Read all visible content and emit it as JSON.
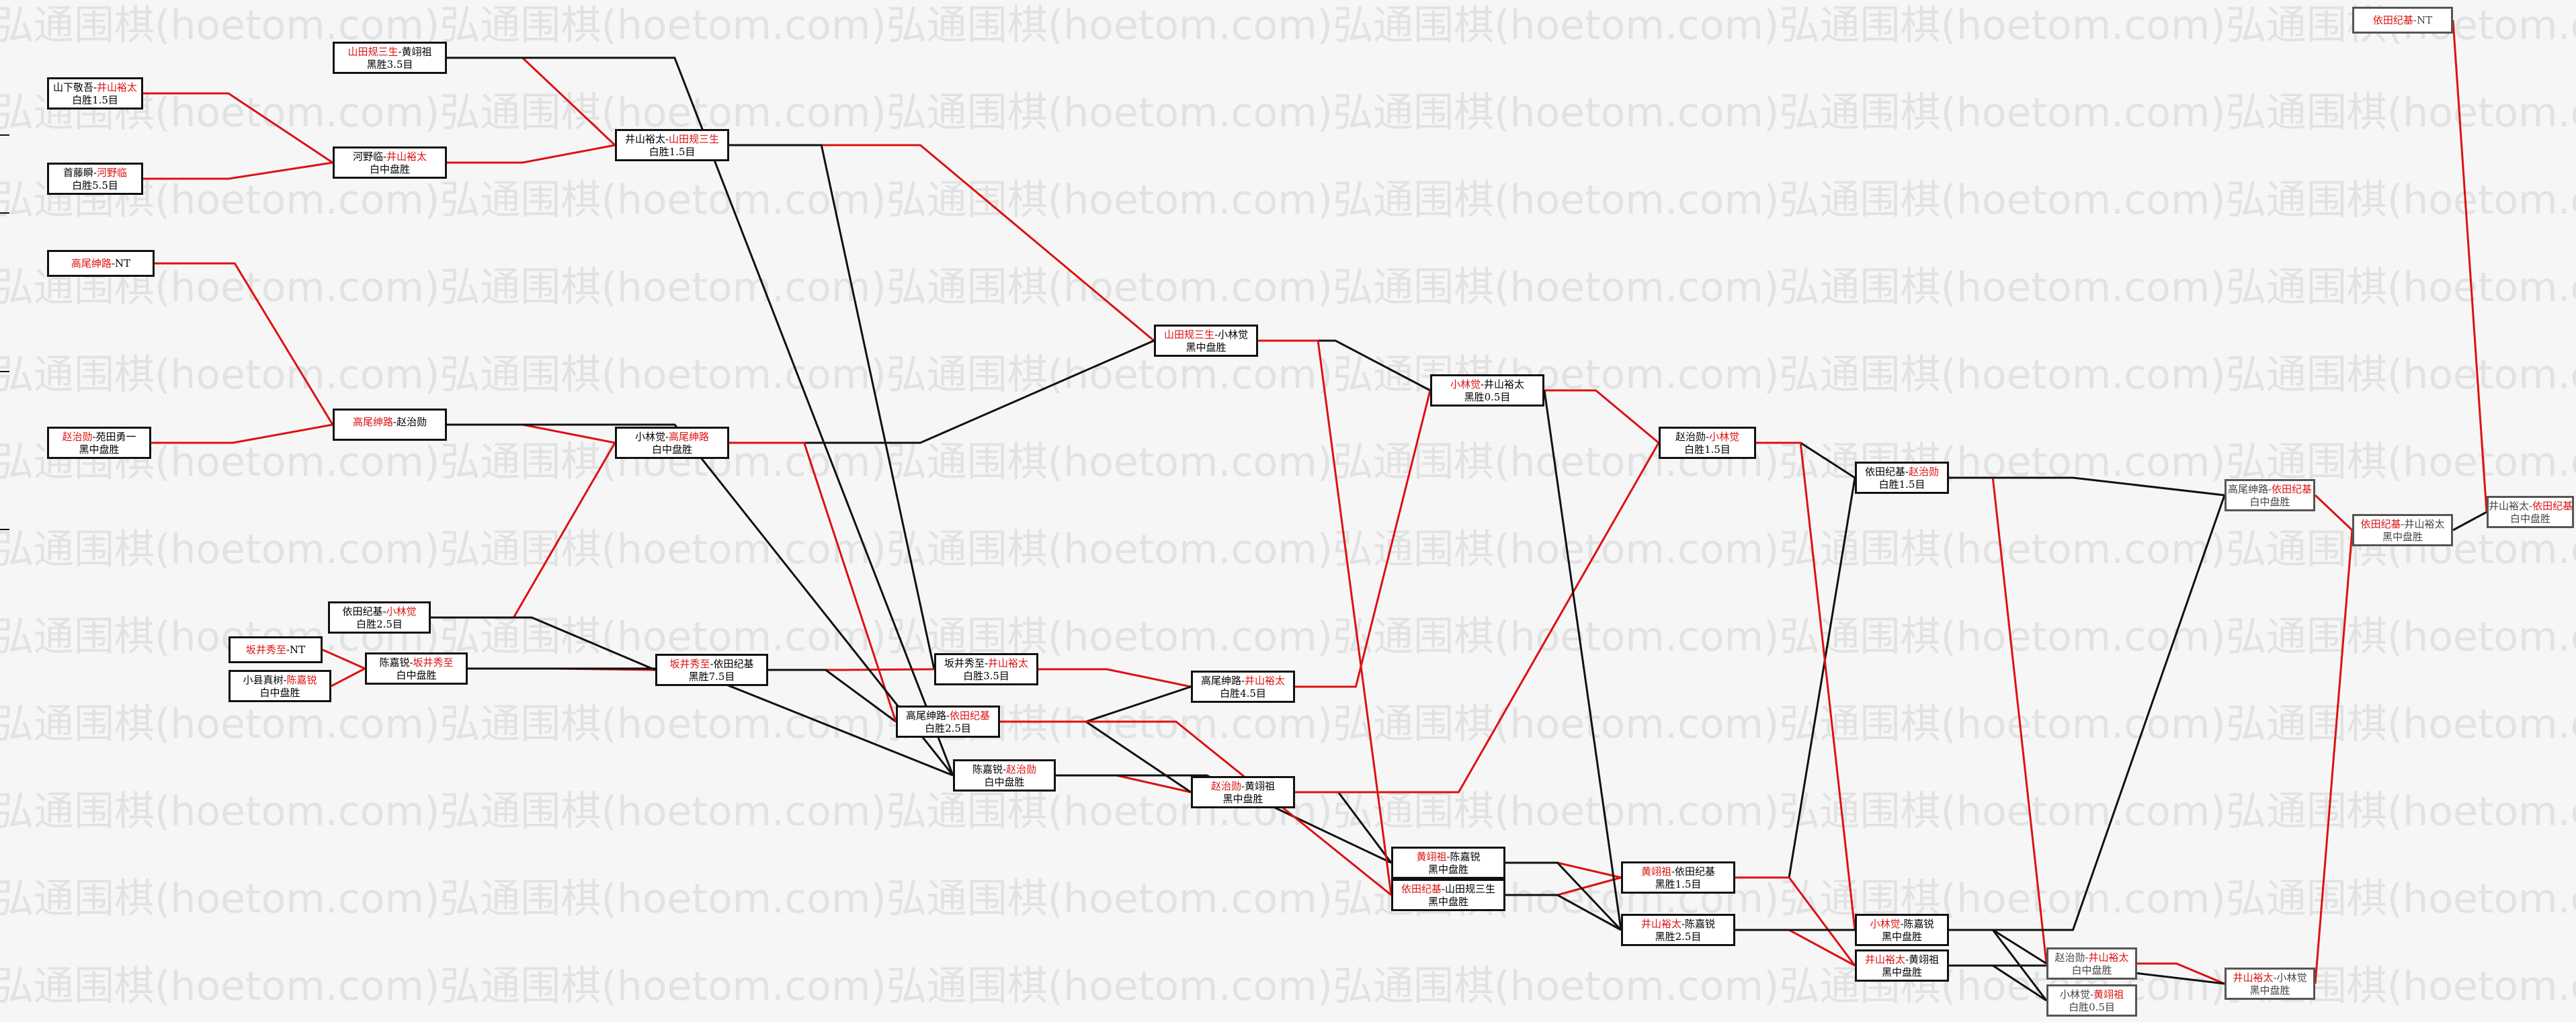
{
  "watermark": "弘通围棋(hoetom.com)",
  "colors": {
    "winner": "#dd1111",
    "line_win": "#dd1111",
    "line_loss": "#111111",
    "background": "#f6f6f6"
  },
  "games": {
    "g1": {
      "black": "山下敬吾",
      "white": "井山裕太",
      "winner": "white",
      "result": "白胜1.5目"
    },
    "g2": {
      "black": "首藤瞬",
      "white": "河野临",
      "winner": "white",
      "result": "白胜5.5目"
    },
    "g3": {
      "black": "高尾绅路",
      "white": "NT",
      "winner": "black",
      "result": ""
    },
    "g4": {
      "black": "赵治勋",
      "white": "苑田勇一",
      "winner": "black",
      "result": "黑中盘胜"
    },
    "g5": {
      "black": "山田规三生",
      "white": "黄翊祖",
      "winner": "black",
      "result": "黑胜3.5目"
    },
    "g6": {
      "black": "河野临",
      "white": "井山裕太",
      "winner": "white",
      "result": "白中盘胜"
    },
    "g7": {
      "black": "高尾绅路",
      "white": "赵治勋",
      "winner": "black",
      "result": ""
    },
    "g8": {
      "black": "依田纪基",
      "white": "小林觉",
      "winner": "white",
      "result": "白胜2.5目"
    },
    "g9": {
      "black": "坂井秀至",
      "white": "NT",
      "winner": "black",
      "result": ""
    },
    "g10": {
      "black": "小县真树",
      "white": "陈嘉锐",
      "winner": "white",
      "result": "白中盘胜"
    },
    "g11": {
      "black": "陈嘉锐",
      "white": "坂井秀至",
      "winner": "white",
      "result": "白中盘胜"
    },
    "g12": {
      "black": "井山裕太",
      "white": "山田规三生",
      "winner": "white",
      "result": "白胜1.5目"
    },
    "g13": {
      "black": "小林觉",
      "white": "高尾绅路",
      "winner": "white",
      "result": "白中盘胜"
    },
    "g14": {
      "black": "坂井秀至",
      "white": "依田纪基",
      "winner": "black",
      "result": "黑胜7.5目"
    },
    "g15": {
      "black": "坂井秀至",
      "white": "井山裕太",
      "winner": "white",
      "result": "白胜3.5目"
    },
    "g16": {
      "black": "高尾绅路",
      "white": "依田纪基",
      "winner": "white",
      "result": "白胜2.5目"
    },
    "g17": {
      "black": "陈嘉锐",
      "white": "赵治勋",
      "winner": "white",
      "result": "白中盘胜"
    },
    "g18": {
      "black": "山田规三生",
      "white": "小林觉",
      "winner": "black",
      "result": "黑中盘胜"
    },
    "g19": {
      "black": "高尾绅路",
      "white": "井山裕太",
      "winner": "white",
      "result": "白胜4.5目"
    },
    "g20": {
      "black": "赵治勋",
      "white": "黄翊祖",
      "winner": "black",
      "result": "黑中盘胜"
    },
    "g21": {
      "black": "小林觉",
      "white": "井山裕太",
      "winner": "black",
      "result": "黑胜0.5目"
    },
    "g22": {
      "black": "黄翊祖",
      "white": "陈嘉锐",
      "winner": "black",
      "result": "黑中盘胜"
    },
    "g23": {
      "black": "依田纪基",
      "white": "山田规三生",
      "winner": "black",
      "result": "黑中盘胜"
    },
    "g24": {
      "black": "赵治勋",
      "white": "小林觉",
      "winner": "white",
      "result": "白胜1.5目"
    },
    "g25": {
      "black": "黄翊祖",
      "white": "依田纪基",
      "winner": "black",
      "result": "黑胜1.5目"
    },
    "g26": {
      "black": "井山裕太",
      "white": "陈嘉锐",
      "winner": "black",
      "result": "黑胜2.5目"
    },
    "g27": {
      "black": "依田纪基",
      "white": "赵治勋",
      "winner": "white",
      "result": "白胜1.5目"
    },
    "g28": {
      "black": "小林觉",
      "white": "陈嘉锐",
      "winner": "black",
      "result": "黑中盘胜"
    },
    "g29": {
      "black": "井山裕太",
      "white": "黄翊祖",
      "winner": "black",
      "result": "黑中盘胜"
    },
    "g30": {
      "black": "赵治勋",
      "white": "井山裕太",
      "winner": "white",
      "result": "白中盘胜"
    },
    "g31": {
      "black": "小林觉",
      "white": "黄翊祖",
      "winner": "white",
      "result": "白胜0.5目"
    },
    "g32": {
      "black": "高尾绅路",
      "white": "依田纪基",
      "winner": "white",
      "result": "白中盘胜"
    },
    "g33": {
      "black": "井山裕太",
      "white": "小林觉",
      "winner": "black",
      "result": "黑中盘胜"
    },
    "g34": {
      "black": "依田纪基",
      "white": "井山裕太",
      "winner": "black",
      "result": "黑中盘胜"
    },
    "g35": {
      "black": "井山裕太",
      "white": "依田纪基",
      "winner": "white",
      "result": "白中盘胜"
    },
    "g36": {
      "black": "依田纪基",
      "white": "NT",
      "winner": "black",
      "result": ""
    }
  }
}
